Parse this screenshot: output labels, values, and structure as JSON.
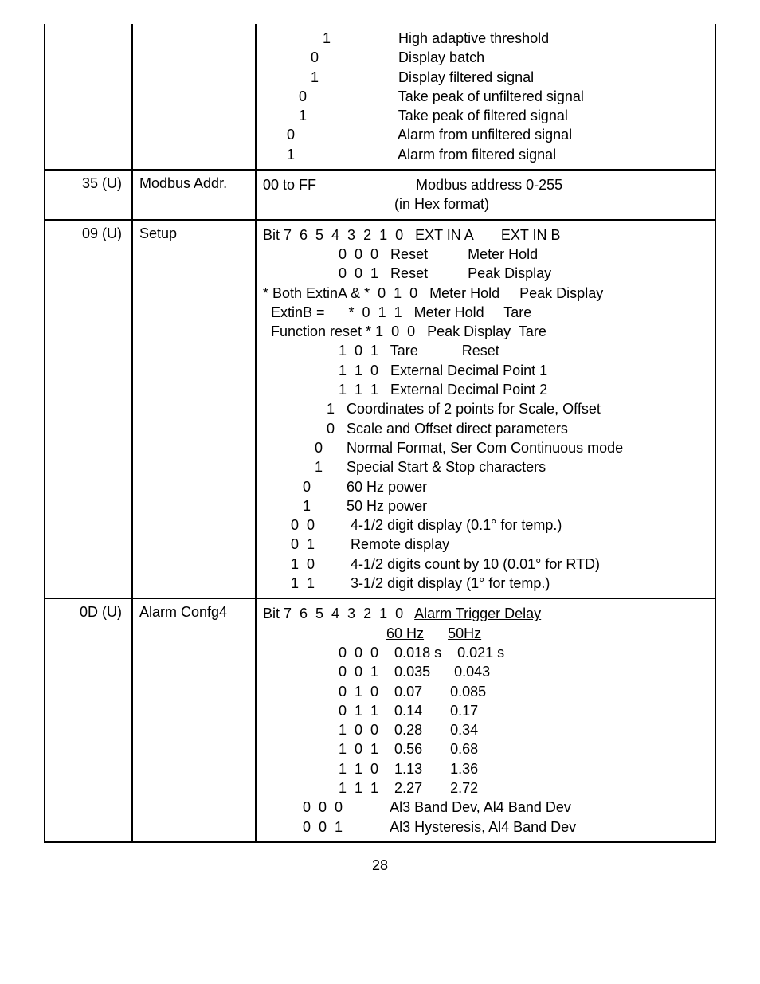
{
  "rows": [
    {
      "c1": "",
      "c2": "",
      "c3_lines": [
        "               1                 High adaptive threshold",
        "            0                    Display batch",
        "            1                    Display filtered signal",
        "         0                       Take peak of unfiltered signal",
        "         1                       Take peak of filtered signal",
        "      0                          Alarm from unfiltered signal",
        "      1                          Alarm from filtered signal"
      ]
    },
    {
      "c1": "35 (U)",
      "c2": "Modbus Addr.",
      "c3_lines": [
        "00 to FF                         Modbus address 0-255",
        "                                 (in Hex format)"
      ]
    },
    {
      "c1": "09 (U)",
      "c2": "Setup",
      "c3_lines": [
        "Bit 7  6  5  4  3  2  1  0   <u>EXT IN A</u>       <u>EXT IN B</u>",
        "                   0  0  0   Reset          Meter Hold",
        "                   0  0  1   Reset          Peak Display",
        "* Both ExtinA &amp; *  0  1  0   Meter Hold     Peak Display",
        "  ExtinB =      *  0  1  1   Meter Hold     Tare",
        "  Function reset * 1  0  0   Peak Display  Tare",
        "                   1  0  1   Tare           Reset",
        "                   1  1  0   External Decimal Point 1",
        "                   1  1  1   External Decimal Point 2",
        "                1   Coordinates of 2 points for Scale, Offset",
        "                0   Scale and Offset direct parameters",
        "             0      Normal Format, Ser Com Continuous mode",
        "             1      Special Start &amp; Stop characters",
        "          0         60 Hz power",
        "          1         50 Hz power",
        "       0  0         4-1/2 digit display (0.1° for temp.)",
        "       0  1         Remote display",
        "       1  0         4-1/2 digits count by 10 (0.01° for RTD)",
        "       1  1         3-1/2 digit display (1° for temp.)"
      ]
    },
    {
      "c1": "0D (U)",
      "c2": "Alarm Confg4",
      "c3_lines": [
        "Bit 7  6  5  4  3  2  1  0   <u>Alarm Trigger Delay</u>",
        "                               <u>60 Hz</u>      <u>50Hz</u>",
        "                   0  0  0    0.018 s    0.021 s",
        "                   0  0  1    0.035      0.043",
        "                   0  1  0    0.07       0.085",
        "                   0  1  1    0.14       0.17",
        "                   1  0  0    0.28       0.34",
        "                   1  0  1    0.56       0.68",
        "                   1  1  0    1.13       1.36",
        "                   1  1  1    2.27       2.72",
        "          0  0  0            Al3 Band Dev, Al4 Band Dev",
        "          0  0  1            Al3 Hysteresis, Al4 Band Dev"
      ]
    }
  ],
  "page_number": "28"
}
